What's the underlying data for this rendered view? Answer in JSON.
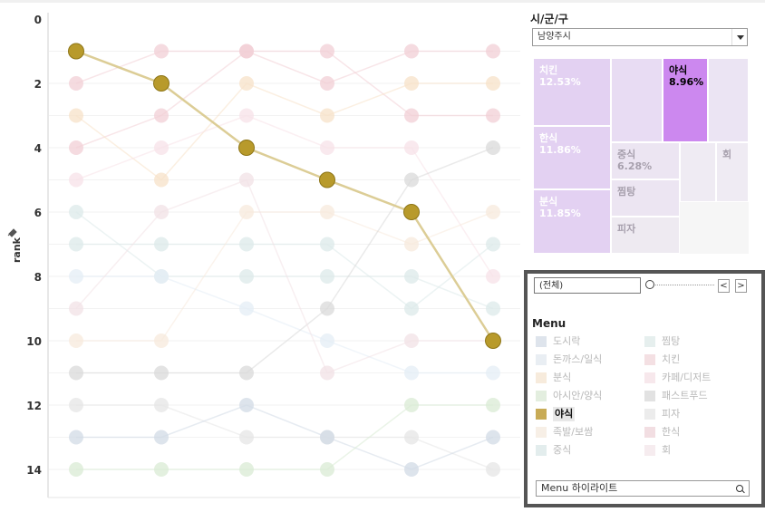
{
  "chart_data": {
    "type": "line",
    "ylabel": "rank",
    "ylim": [
      0,
      15
    ],
    "y_ticks": [
      0,
      2,
      4,
      6,
      8,
      10,
      12,
      14
    ],
    "y_reversed": true,
    "x_count": 6,
    "series": [
      {
        "name": "야식",
        "color": "#b89a2b",
        "highlighted": true,
        "values": [
          1,
          2,
          4,
          5,
          6,
          10
        ]
      },
      {
        "name": "치킨",
        "color": "#f2cfd6",
        "values": [
          2,
          1,
          1,
          2,
          1,
          1
        ]
      },
      {
        "name": "한식",
        "color": "#f2cfd6",
        "values": [
          4,
          3,
          1,
          1,
          3,
          3
        ]
      },
      {
        "name": "분식",
        "color": "#f7e2c8",
        "values": [
          3,
          5,
          2,
          3,
          2,
          2
        ]
      },
      {
        "name": "중식",
        "color": "#dce9e9",
        "values": [
          6,
          8,
          8,
          8,
          8,
          9
        ]
      },
      {
        "name": "찜탕",
        "color": "#dce9e9",
        "values": [
          7,
          7,
          7,
          7,
          9,
          7
        ]
      },
      {
        "name": "돈까스/일식",
        "color": "#e4edf5",
        "values": [
          8,
          8,
          9,
          10,
          11,
          11
        ]
      },
      {
        "name": "카페/디저트",
        "color": "#f7e2e8",
        "values": [
          5,
          4,
          3,
          4,
          4,
          8
        ]
      },
      {
        "name": "족발/보쌈",
        "color": "#f7e9dc",
        "values": [
          10,
          10,
          6,
          6,
          7,
          6
        ]
      },
      {
        "name": "패스트푸드",
        "color": "#d9d9d9",
        "values": [
          11,
          11,
          11,
          9,
          5,
          4
        ]
      },
      {
        "name": "피자",
        "color": "#e6e6e6",
        "values": [
          12,
          12,
          13,
          13,
          13,
          14
        ]
      },
      {
        "name": "도시락",
        "color": "#d2dbe6",
        "values": [
          13,
          13,
          12,
          13,
          14,
          13
        ]
      },
      {
        "name": "아시안/양식",
        "color": "#d9ebd4",
        "values": [
          14,
          14,
          14,
          14,
          12,
          12
        ]
      },
      {
        "name": "회",
        "color": "#f2e2e6",
        "values": [
          9,
          6,
          5,
          11,
          10,
          10
        ]
      }
    ]
  },
  "filter": {
    "title": "시/군/구",
    "selected": "남양주시"
  },
  "treemap": [
    {
      "label": "치킨",
      "pct": "12.53%",
      "color": "#e3d1f2",
      "text_color": "#ffffff"
    },
    {
      "label": "한식",
      "pct": "11.86%",
      "color": "#e3d1f2",
      "text_color": "#ffffff"
    },
    {
      "label": "분식",
      "pct": "11.85%",
      "color": "#e3d1f2",
      "text_color": "#ffffff"
    },
    {
      "label": "",
      "pct": "",
      "color": "#e8dcf3",
      "text_color": "#ffffff"
    },
    {
      "label": "야식",
      "pct": "8.96%",
      "color": "#cc88ef",
      "text_color": "#000000"
    },
    {
      "label": "",
      "pct": "",
      "color": "#ebe4f3",
      "text_color": "#ffffff"
    },
    {
      "label": "중식",
      "pct": "6.28%",
      "color": "#ece5f2",
      "text_color": "#a7a0ad"
    },
    {
      "label": "찜탕",
      "pct": "",
      "color": "#ece5f2",
      "text_color": "#a7a0ad"
    },
    {
      "label": "피자",
      "pct": "",
      "color": "#eeeaf1",
      "text_color": "#a7a0ad"
    },
    {
      "label": "",
      "pct": "",
      "color": "#efebf3",
      "text_color": "#a7a0ad"
    },
    {
      "label": "회",
      "pct": "",
      "color": "#efebf3",
      "text_color": "#a7a0ad"
    }
  ],
  "page_control": {
    "value": "(전체)",
    "prev": "<",
    "next": ">"
  },
  "legend": {
    "title": "Menu",
    "items": [
      {
        "label": "도시락",
        "color": "#dee4ec"
      },
      {
        "label": "돈까스/일식",
        "color": "#e9eef3"
      },
      {
        "label": "분식",
        "color": "#f7ebdc"
      },
      {
        "label": "아시안/양식",
        "color": "#e3eedf"
      },
      {
        "label": "야식",
        "color": "#c8ab56",
        "active": true
      },
      {
        "label": "족발/보쌈",
        "color": "#f7efe6"
      },
      {
        "label": "중식",
        "color": "#e3eded"
      },
      {
        "label": "찜탕",
        "color": "#e6efee"
      },
      {
        "label": "치킨",
        "color": "#f4e0e3"
      },
      {
        "label": "카페/디저트",
        "color": "#f7e8ec"
      },
      {
        "label": "패스트푸드",
        "color": "#e2e2e2"
      },
      {
        "label": "피자",
        "color": "#ececec"
      },
      {
        "label": "한식",
        "color": "#f2dee2"
      },
      {
        "label": "회",
        "color": "#f6ecef"
      }
    ]
  },
  "highlight": {
    "placeholder": "Menu 하이라이트"
  }
}
